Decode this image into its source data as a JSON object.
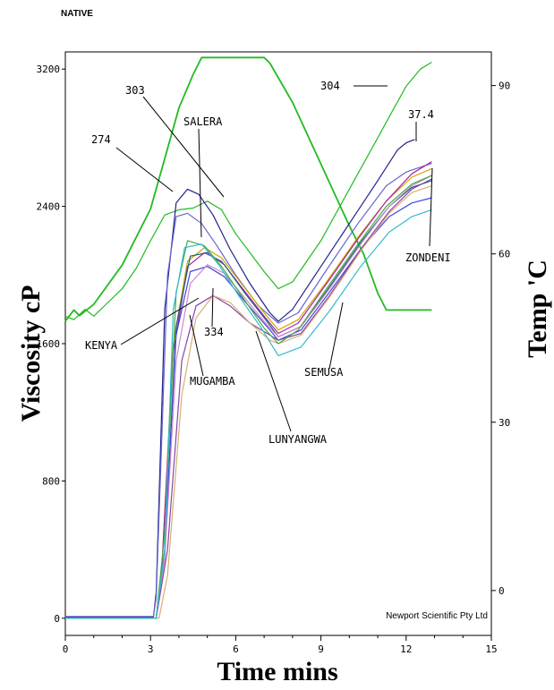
{
  "chart_data": {
    "type": "line",
    "top_label": "NATIVE",
    "credit": "Newport Scientific Pty Ltd",
    "xlabel": "Time mins",
    "ylabel": "Viscosity cP",
    "y2label": "Temp 'C",
    "xlim": [
      0,
      15
    ],
    "ylim": [
      -100,
      3300
    ],
    "y2lim": [
      -8,
      96
    ],
    "x_ticks": [
      0,
      3,
      6,
      9,
      12,
      15
    ],
    "y_ticks": [
      0,
      800,
      1600,
      2400,
      3200
    ],
    "y2_ticks": [
      0,
      30,
      60,
      90
    ],
    "grid": false,
    "series": [
      {
        "color": "#22bb22",
        "axis": "y2",
        "points": [
          [
            0,
            48
          ],
          [
            0.3,
            50
          ],
          [
            0.5,
            49
          ],
          [
            1,
            51
          ],
          [
            2.0,
            58
          ],
          [
            3.0,
            68
          ],
          [
            3.5,
            77
          ],
          [
            4.0,
            86
          ],
          [
            4.5,
            92
          ],
          [
            4.8,
            95
          ],
          [
            5.0,
            95
          ],
          [
            6.0,
            95
          ],
          [
            7.0,
            95
          ],
          [
            7.2,
            94
          ],
          [
            8.0,
            87
          ],
          [
            9.0,
            76
          ],
          [
            10.0,
            65
          ],
          [
            10.5,
            60
          ],
          [
            11.0,
            53
          ],
          [
            11.3,
            50
          ],
          [
            12.0,
            50
          ],
          [
            12.9,
            50
          ]
        ]
      },
      {
        "color": "#22bb22",
        "axis": "y",
        "points": [
          [
            0,
            1760
          ],
          [
            0.3,
            1740
          ],
          [
            0.7,
            1800
          ],
          [
            1,
            1760
          ],
          [
            1.5,
            1840
          ],
          [
            2,
            1920
          ],
          [
            2.5,
            2040
          ],
          [
            3,
            2200
          ],
          [
            3.5,
            2350
          ],
          [
            4,
            2380
          ],
          [
            4.5,
            2390
          ],
          [
            5,
            2430
          ],
          [
            5.5,
            2380
          ],
          [
            6,
            2240
          ],
          [
            6.5,
            2130
          ],
          [
            7,
            2020
          ],
          [
            7.5,
            1920
          ],
          [
            8,
            1960
          ],
          [
            9,
            2200
          ],
          [
            10,
            2500
          ],
          [
            11,
            2800
          ],
          [
            11.5,
            2950
          ],
          [
            12,
            3100
          ],
          [
            12.5,
            3200
          ],
          [
            12.9,
            3240
          ]
        ]
      },
      {
        "name": "303",
        "color": "#22228a",
        "axis": "y",
        "points": [
          [
            0,
            5
          ],
          [
            3.1,
            5
          ],
          [
            3.2,
            150
          ],
          [
            3.5,
            1800
          ],
          [
            3.9,
            2420
          ],
          [
            4.3,
            2500
          ],
          [
            4.7,
            2470
          ],
          [
            5.2,
            2350
          ],
          [
            5.8,
            2150
          ],
          [
            6.5,
            1950
          ],
          [
            7.2,
            1780
          ],
          [
            7.5,
            1730
          ],
          [
            8,
            1800
          ],
          [
            9,
            2050
          ],
          [
            10,
            2300
          ],
          [
            11,
            2550
          ],
          [
            11.7,
            2730
          ],
          [
            12,
            2770
          ],
          [
            12.3,
            2790
          ]
        ]
      },
      {
        "name": "274",
        "color": "#6666cc",
        "axis": "y",
        "points": [
          [
            0,
            10
          ],
          [
            3.1,
            10
          ],
          [
            3.2,
            120
          ],
          [
            3.6,
            2000
          ],
          [
            3.9,
            2340
          ],
          [
            4.3,
            2360
          ],
          [
            4.8,
            2300
          ],
          [
            5.3,
            2180
          ],
          [
            6,
            2000
          ],
          [
            6.8,
            1820
          ],
          [
            7.5,
            1720
          ],
          [
            8.2,
            1780
          ],
          [
            9.2,
            2030
          ],
          [
            10.3,
            2300
          ],
          [
            11.3,
            2520
          ],
          [
            12,
            2600
          ],
          [
            12.9,
            2650
          ]
        ]
      },
      {
        "name": "SALERA",
        "color": "#c9a900",
        "axis": "y",
        "points": [
          [
            0,
            0
          ],
          [
            3.2,
            0
          ],
          [
            3.4,
            300
          ],
          [
            3.8,
            1600
          ],
          [
            4.3,
            2080
          ],
          [
            4.9,
            2160
          ],
          [
            5.5,
            2100
          ],
          [
            6.2,
            1950
          ],
          [
            7,
            1780
          ],
          [
            7.5,
            1680
          ],
          [
            8.2,
            1740
          ],
          [
            9.2,
            1960
          ],
          [
            10.3,
            2220
          ],
          [
            11.3,
            2430
          ],
          [
            12.2,
            2570
          ],
          [
            12.9,
            2620
          ]
        ]
      },
      {
        "name": "304",
        "color": "#aa22aa",
        "axis": "y",
        "points": [
          [
            0,
            0
          ],
          [
            3.2,
            0
          ],
          [
            3.4,
            300
          ],
          [
            3.8,
            1550
          ],
          [
            4.3,
            2050
          ],
          [
            4.9,
            2130
          ],
          [
            5.5,
            2080
          ],
          [
            6.2,
            1930
          ],
          [
            7,
            1760
          ],
          [
            7.5,
            1660
          ],
          [
            8.2,
            1720
          ],
          [
            9.2,
            1950
          ],
          [
            10.3,
            2210
          ],
          [
            11.3,
            2430
          ],
          [
            12.2,
            2590
          ],
          [
            12.9,
            2660
          ]
        ]
      },
      {
        "name": "37.4",
        "color": "#1a5f7a",
        "axis": "y",
        "points": [
          [
            0,
            0
          ],
          [
            3.2,
            0
          ],
          [
            3.5,
            400
          ],
          [
            3.9,
            1700
          ],
          [
            4.4,
            2110
          ],
          [
            5,
            2130
          ],
          [
            5.6,
            2060
          ],
          [
            6.3,
            1900
          ],
          [
            7.1,
            1730
          ],
          [
            7.5,
            1640
          ],
          [
            8.3,
            1700
          ],
          [
            9.3,
            1930
          ],
          [
            10.4,
            2190
          ],
          [
            11.4,
            2400
          ],
          [
            12.2,
            2510
          ],
          [
            12.9,
            2550
          ]
        ]
      },
      {
        "name": "ZONDENI",
        "color": "#4444dd",
        "axis": "y",
        "points": [
          [
            0,
            0
          ],
          [
            3.2,
            0
          ],
          [
            3.5,
            400
          ],
          [
            3.9,
            1650
          ],
          [
            4.4,
            2020
          ],
          [
            5,
            2050
          ],
          [
            5.6,
            1990
          ],
          [
            6.3,
            1850
          ],
          [
            7.1,
            1700
          ],
          [
            7.5,
            1620
          ],
          [
            8.3,
            1680
          ],
          [
            9.3,
            1900
          ],
          [
            10.4,
            2150
          ],
          [
            11.4,
            2340
          ],
          [
            12.2,
            2420
          ],
          [
            12.9,
            2450
          ]
        ]
      },
      {
        "name": "KENYA",
        "color": "#cc88cc",
        "axis": "y",
        "points": [
          [
            0,
            0
          ],
          [
            3.2,
            0
          ],
          [
            3.5,
            350
          ],
          [
            3.9,
            1500
          ],
          [
            4.4,
            1950
          ],
          [
            5,
            2060
          ],
          [
            5.6,
            2010
          ],
          [
            6.3,
            1870
          ],
          [
            7.1,
            1710
          ],
          [
            7.5,
            1640
          ],
          [
            8.3,
            1700
          ],
          [
            9.3,
            1920
          ],
          [
            10.4,
            2180
          ],
          [
            11.4,
            2400
          ],
          [
            12.2,
            2520
          ],
          [
            12.9,
            2580
          ]
        ]
      },
      {
        "name": "334",
        "color": "#8844aa",
        "axis": "y",
        "points": [
          [
            0,
            0
          ],
          [
            3.2,
            0
          ],
          [
            3.6,
            400
          ],
          [
            4.1,
            1500
          ],
          [
            4.6,
            1820
          ],
          [
            5.2,
            1880
          ],
          [
            5.8,
            1820
          ],
          [
            6.5,
            1720
          ],
          [
            7.2,
            1650
          ],
          [
            7.5,
            1620
          ],
          [
            8.3,
            1660
          ],
          [
            9.3,
            1880
          ],
          [
            10.4,
            2150
          ],
          [
            11.4,
            2370
          ],
          [
            12.2,
            2500
          ],
          [
            12.9,
            2560
          ]
        ]
      },
      {
        "name": "MUGAMBA",
        "color": "#d4b070",
        "axis": "y",
        "points": [
          [
            0,
            0
          ],
          [
            3.3,
            0
          ],
          [
            3.6,
            250
          ],
          [
            4.1,
            1300
          ],
          [
            4.6,
            1750
          ],
          [
            5.2,
            1880
          ],
          [
            5.8,
            1840
          ],
          [
            6.5,
            1720
          ],
          [
            7.2,
            1620
          ],
          [
            7.5,
            1600
          ],
          [
            8.3,
            1650
          ],
          [
            9.3,
            1870
          ],
          [
            10.4,
            2140
          ],
          [
            11.4,
            2360
          ],
          [
            12.2,
            2480
          ],
          [
            12.9,
            2520
          ]
        ]
      },
      {
        "name": "LUNYANGWA",
        "color": "#44aa44",
        "axis": "y",
        "points": [
          [
            0,
            0
          ],
          [
            3.2,
            0
          ],
          [
            3.5,
            500
          ],
          [
            3.9,
            1900
          ],
          [
            4.3,
            2200
          ],
          [
            4.9,
            2170
          ],
          [
            5.5,
            2050
          ],
          [
            6.2,
            1880
          ],
          [
            7,
            1690
          ],
          [
            7.5,
            1600
          ],
          [
            8.2,
            1680
          ],
          [
            9.2,
            1920
          ],
          [
            10.3,
            2180
          ],
          [
            11.3,
            2400
          ],
          [
            12.2,
            2530
          ],
          [
            12.9,
            2580
          ]
        ]
      },
      {
        "name": "SEMUSA",
        "color": "#33bbcc",
        "axis": "y",
        "points": [
          [
            0,
            0
          ],
          [
            3.2,
            0
          ],
          [
            3.5,
            400
          ],
          [
            3.8,
            1800
          ],
          [
            4.2,
            2160
          ],
          [
            4.8,
            2180
          ],
          [
            5.4,
            2060
          ],
          [
            6.1,
            1880
          ],
          [
            6.9,
            1690
          ],
          [
            7.5,
            1530
          ],
          [
            8.3,
            1580
          ],
          [
            9.3,
            1790
          ],
          [
            10.4,
            2050
          ],
          [
            11.4,
            2250
          ],
          [
            12.2,
            2340
          ],
          [
            12.9,
            2380
          ]
        ]
      }
    ],
    "annotations": [
      {
        "text": "303"
      },
      {
        "text": "SALERA"
      },
      {
        "text": "274"
      },
      {
        "text": "304"
      },
      {
        "text": "37.4"
      },
      {
        "text": "ZONDENI"
      },
      {
        "text": "KENYA"
      },
      {
        "text": "334"
      },
      {
        "text": "MUGAMBA"
      },
      {
        "text": "SEMUSA"
      },
      {
        "text": "LUNYANGWA"
      }
    ]
  }
}
